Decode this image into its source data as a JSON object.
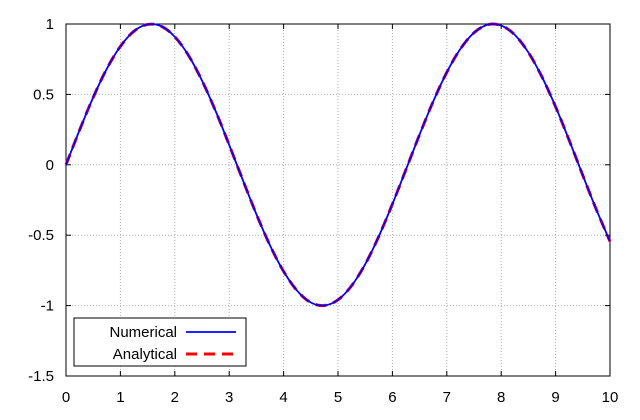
{
  "chart_data": {
    "type": "line",
    "title": "",
    "xlabel": "",
    "ylabel": "",
    "xlim": [
      0,
      10
    ],
    "ylim": [
      -1.5,
      1
    ],
    "grid": true,
    "legend_position": "bottom-left",
    "x_ticks": [
      "0",
      "1",
      "2",
      "3",
      "4",
      "5",
      "6",
      "7",
      "8",
      "9",
      "10"
    ],
    "y_ticks": [
      "1",
      "0.5",
      "0",
      "-0.5",
      "-1",
      "-1.5"
    ],
    "x_tick_values": [
      0,
      1,
      2,
      3,
      4,
      5,
      6,
      7,
      8,
      9,
      10
    ],
    "y_tick_values": [
      1,
      0.5,
      0,
      -0.5,
      -1,
      -1.5
    ],
    "series": [
      {
        "name": "Numerical",
        "color": "#0000ff",
        "style": "solid",
        "x": [
          0,
          0.25,
          0.5,
          0.75,
          1,
          1.25,
          1.5,
          1.75,
          2,
          2.25,
          2.5,
          2.75,
          3,
          3.25,
          3.5,
          3.75,
          4,
          4.25,
          4.5,
          4.75,
          5,
          5.25,
          5.5,
          5.75,
          6,
          6.25,
          6.5,
          6.75,
          7,
          7.25,
          7.5,
          7.75,
          8,
          8.25,
          8.5,
          8.75,
          9,
          9.25,
          9.5,
          9.75,
          10
        ],
        "y": [
          0,
          0.247,
          0.479,
          0.682,
          0.841,
          0.949,
          0.997,
          0.984,
          0.909,
          0.778,
          0.598,
          0.382,
          0.141,
          -0.108,
          -0.351,
          -0.572,
          -0.757,
          -0.895,
          -0.978,
          -0.999,
          -0.959,
          -0.859,
          -0.706,
          -0.508,
          -0.279,
          -0.033,
          0.215,
          0.45,
          0.657,
          0.823,
          0.938,
          0.995,
          0.989,
          0.923,
          0.798,
          0.624,
          0.412,
          0.174,
          -0.075,
          -0.319,
          -0.544
        ]
      },
      {
        "name": "Analytical",
        "color": "#ff0000",
        "style": "dashed",
        "x": [
          0,
          0.25,
          0.5,
          0.75,
          1,
          1.25,
          1.5,
          1.75,
          2,
          2.25,
          2.5,
          2.75,
          3,
          3.25,
          3.5,
          3.75,
          4,
          4.25,
          4.5,
          4.75,
          5,
          5.25,
          5.5,
          5.75,
          6,
          6.25,
          6.5,
          6.75,
          7,
          7.25,
          7.5,
          7.75,
          8,
          8.25,
          8.5,
          8.75,
          9,
          9.25,
          9.5,
          9.75,
          10
        ],
        "y": [
          0,
          0.247,
          0.479,
          0.682,
          0.841,
          0.949,
          0.997,
          0.984,
          0.909,
          0.778,
          0.598,
          0.382,
          0.141,
          -0.108,
          -0.351,
          -0.572,
          -0.757,
          -0.895,
          -0.978,
          -0.999,
          -0.959,
          -0.859,
          -0.706,
          -0.508,
          -0.279,
          -0.033,
          0.215,
          0.45,
          0.657,
          0.823,
          0.938,
          0.995,
          0.989,
          0.923,
          0.798,
          0.624,
          0.412,
          0.174,
          -0.075,
          -0.319,
          -0.544
        ]
      }
    ]
  }
}
